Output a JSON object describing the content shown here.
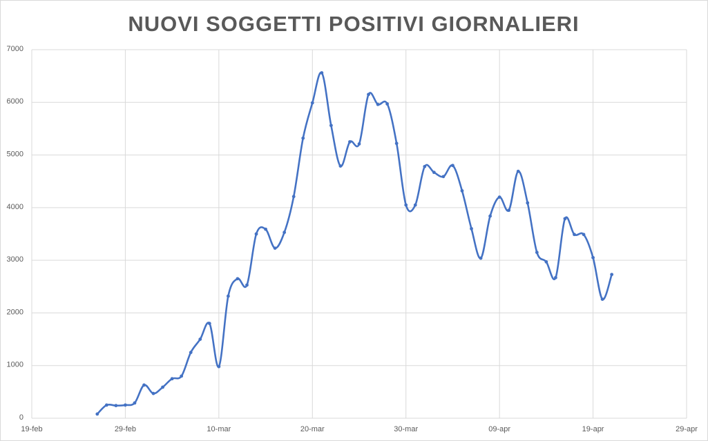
{
  "chart_data": {
    "type": "line",
    "title": "NUOVI SOGGETTI POSITIVI GIORNALIERI",
    "x": [
      "26-feb",
      "27-feb",
      "28-feb",
      "29-feb",
      "01-mar",
      "02-mar",
      "03-mar",
      "04-mar",
      "05-mar",
      "06-mar",
      "07-mar",
      "08-mar",
      "09-mar",
      "10-mar",
      "11-mar",
      "12-mar",
      "13-mar",
      "14-mar",
      "15-mar",
      "16-mar",
      "17-mar",
      "18-mar",
      "19-mar",
      "20-mar",
      "21-mar",
      "22-mar",
      "23-mar",
      "24-mar",
      "25-mar",
      "26-mar",
      "27-mar",
      "28-mar",
      "29-mar",
      "30-mar",
      "31-mar",
      "01-apr",
      "02-apr",
      "03-apr",
      "04-apr",
      "05-apr",
      "06-apr",
      "07-apr",
      "08-apr",
      "09-apr",
      "10-apr",
      "11-apr",
      "12-apr",
      "13-apr",
      "14-apr",
      "15-apr",
      "16-apr",
      "17-apr",
      "18-apr",
      "19-apr",
      "20-apr",
      "21-apr"
    ],
    "series": [
      {
        "color": "#4472c4",
        "smooth": true,
        "values": [
          80,
          250,
          240,
          250,
          290,
          630,
          470,
          590,
          750,
          800,
          1250,
          1500,
          1800,
          980,
          2320,
          2650,
          2530,
          3500,
          3590,
          3230,
          3530,
          4210,
          5320,
          5990,
          6560,
          5560,
          4790,
          5250,
          5210,
          6150,
          5960,
          5970,
          5220,
          4050,
          4050,
          4780,
          4670,
          4590,
          4800,
          4320,
          3600,
          3040,
          3840,
          4200,
          3950,
          4690,
          4090,
          3150,
          2970,
          2670,
          3790,
          3490,
          3490,
          3050,
          2260,
          2730
        ]
      }
    ],
    "xlim": [
      "19-feb",
      "29-apr"
    ],
    "xticks": [
      "19-feb",
      "29-feb",
      "10-mar",
      "20-mar",
      "30-mar",
      "09-apr",
      "19-apr",
      "29-apr"
    ],
    "ylim": [
      0,
      7000
    ],
    "yticks": [
      0,
      1000,
      2000,
      3000,
      4000,
      5000,
      6000,
      7000
    ],
    "grid": true
  }
}
